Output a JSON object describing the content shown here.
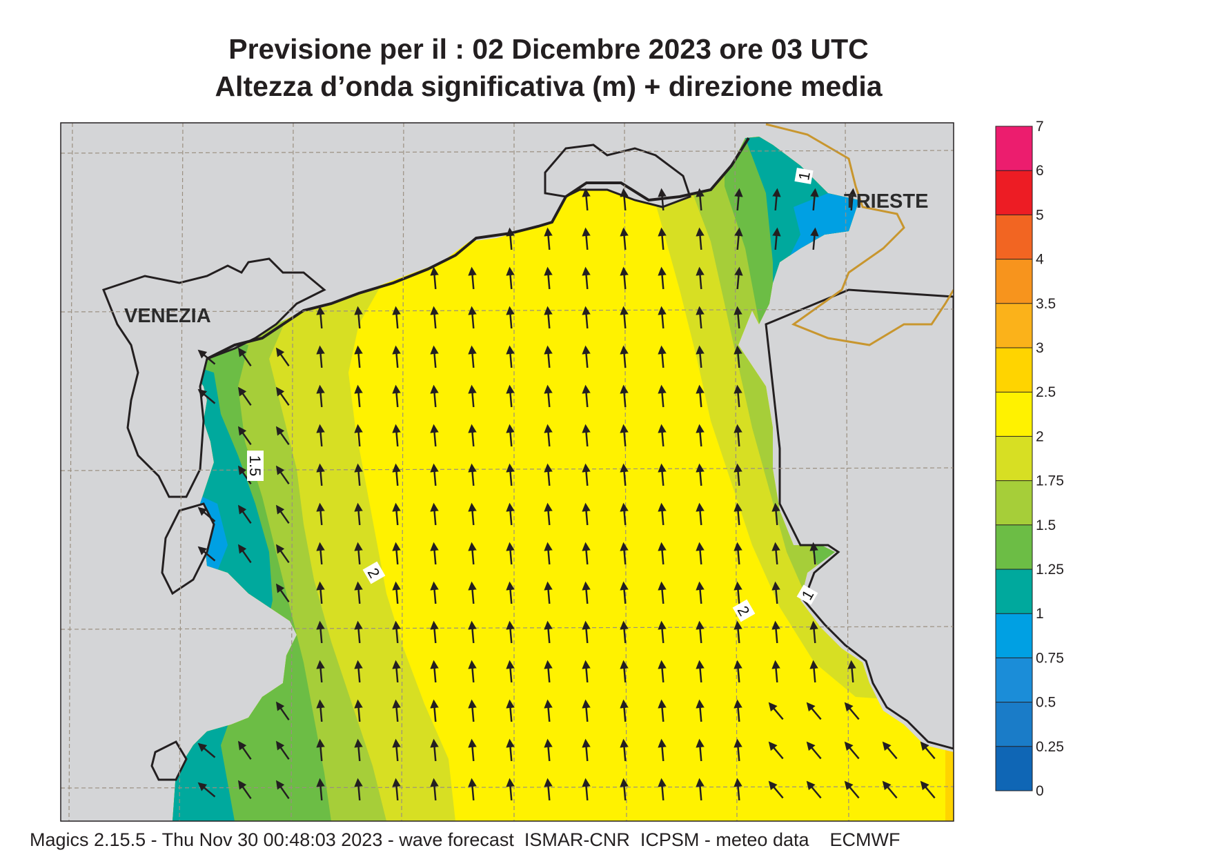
{
  "title": {
    "line1": "Previsione per il  :  02 Dicembre  2023    ore 03 UTC",
    "line2": "Altezza d’onda significativa (m) + direzione media"
  },
  "map": {
    "cities": [
      {
        "name": "VENEZIA"
      },
      {
        "name": "TRIESTE"
      }
    ],
    "contour_labels": [
      "1.5",
      "2",
      "2",
      "1",
      "1"
    ],
    "colors": {
      "land": "#d4d5d7",
      "sea_default": "#fff200",
      "coastline": "#231f20",
      "border": "#c8962e",
      "grid": "#9a8f80",
      "arrow": "#231f20"
    },
    "wave_direction": "north-northwest"
  },
  "colorbar": {
    "levels": [
      "7",
      "6",
      "5",
      "4",
      "3.5",
      "3",
      "2.5",
      "2",
      "1.75",
      "1.5",
      "1.25",
      "1",
      "0.75",
      "0.5",
      "0.25",
      "0"
    ],
    "colors": [
      "#ec1d6e",
      "#ed1c24",
      "#f26522",
      "#f7941d",
      "#fbb21a",
      "#ffd400",
      "#fff200",
      "#d7df23",
      "#a6ce39",
      "#6cbd45",
      "#00a99d",
      "#00a0e3",
      "#1b8dd8",
      "#1a7cc8",
      "#0f66b5"
    ]
  },
  "footer": "Magics 2.15.5 - Thu Nov 30 00:48:03 2023 - wave forecast  ISMAR-CNR  ICPSM - meteo data    ECMWF"
}
